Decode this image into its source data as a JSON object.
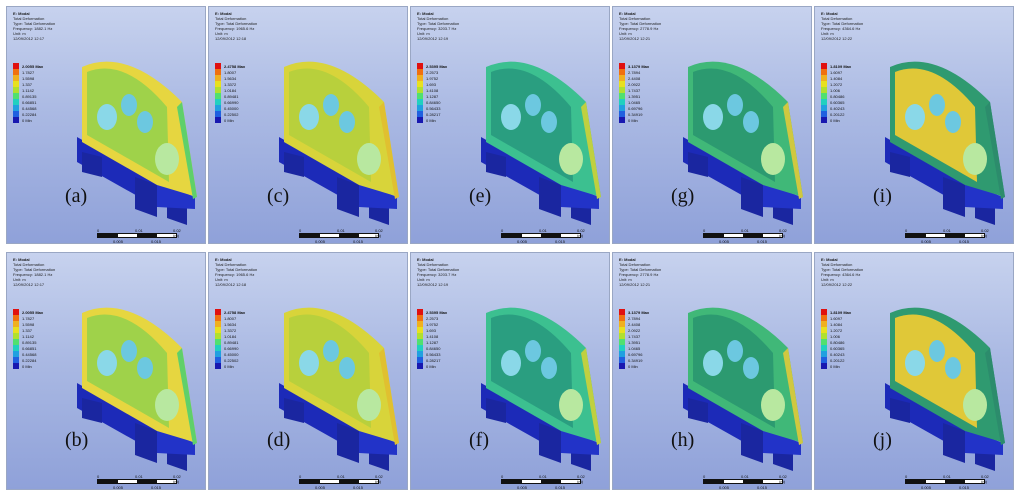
{
  "panels": [
    {
      "id": "a",
      "label": "(a)",
      "title": [
        "E: Modal",
        "Total Deformation",
        "Type: Total Deformation",
        "Frequency: 1882.1 Hz",
        "Unit: m",
        "12/09/2012 12:17"
      ],
      "legend": [
        "2.0055 Max",
        "1.7827",
        "1.5598",
        "1.337",
        "1.1142",
        "0.89135",
        "0.66851",
        "0.44568",
        "0.22284",
        "0 Min"
      ]
    },
    {
      "id": "c",
      "label": "(c)",
      "title": [
        "E: Modal",
        "Total Deformation",
        "Type: Total Deformation",
        "Frequency: 1965.6 Hz",
        "Unit: m",
        "12/09/2012 12:18"
      ],
      "legend": [
        "2.4758 Max",
        "1.8007",
        "1.5634",
        "1.3372",
        "1.0184",
        "0.89481",
        "0.66990",
        "0.45000",
        "0.22502",
        "0 Min"
      ]
    },
    {
      "id": "e",
      "label": "(e)",
      "title": [
        "E: Modal",
        "Total Deformation",
        "Type: Total Deformation",
        "Frequency: 3203.7 Hz",
        "Unit: m",
        "12/09/2012 12:19"
      ],
      "legend": [
        "2.5395 Max",
        "2.2573",
        "1.9752",
        "1.693",
        "1.4108",
        "1.1287",
        "0.84650",
        "0.56433",
        "0.28217",
        "0 Min"
      ]
    },
    {
      "id": "g",
      "label": "(g)",
      "title": [
        "E: Modal",
        "Total Deformation",
        "Type: Total Deformation",
        "Frequency: 2778.9 Hz",
        "Unit: m",
        "12/09/2012 12:21"
      ],
      "legend": [
        "3.1379 Max",
        "2.7894",
        "2.4408",
        "2.0922",
        "1.7437",
        "1.3951",
        "1.0465",
        "0.69796",
        "0.34919",
        "0 Min"
      ]
    },
    {
      "id": "i",
      "label": "(i)",
      "title": [
        "E: Modal",
        "Total Deformation",
        "Type: Total Deformation",
        "Frequency: 4364.6 Hz",
        "Unit: m",
        "12/09/2012 12:22"
      ],
      "legend": [
        "1.8109 Max",
        "1.6097",
        "1.4084",
        "1.2072",
        "1.006",
        "0.80486",
        "0.60365",
        "0.40243",
        "0.20122",
        "0 Min"
      ]
    },
    {
      "id": "b",
      "label": "(b)",
      "title": [
        "E: Modal",
        "Total Deformation",
        "Type: Total Deformation",
        "Frequency: 1882.1 Hz",
        "Unit: m",
        "12/09/2012 12:17"
      ],
      "legend": [
        "2.0055 Max",
        "1.7827",
        "1.5598",
        "1.337",
        "1.1142",
        "0.89135",
        "0.66851",
        "0.44568",
        "0.22284",
        "0 Min"
      ]
    },
    {
      "id": "d",
      "label": "(d)",
      "title": [
        "E: Modal",
        "Total Deformation",
        "Type: Total Deformation",
        "Frequency: 1965.6 Hz",
        "Unit: m",
        "12/09/2012 12:18"
      ],
      "legend": [
        "2.4758 Max",
        "1.8007",
        "1.5634",
        "1.3372",
        "1.0184",
        "0.89481",
        "0.66990",
        "0.45000",
        "0.22502",
        "0 Min"
      ]
    },
    {
      "id": "f",
      "label": "(f)",
      "title": [
        "E: Modal",
        "Total Deformation",
        "Type: Total Deformation",
        "Frequency: 3203.7 Hz",
        "Unit: m",
        "12/09/2012 12:19"
      ],
      "legend": [
        "2.5395 Max",
        "2.2573",
        "1.9752",
        "1.693",
        "1.4108",
        "1.1287",
        "0.84650",
        "0.56433",
        "0.28217",
        "0 Min"
      ]
    },
    {
      "id": "h",
      "label": "(h)",
      "title": [
        "E: Modal",
        "Total Deformation",
        "Type: Total Deformation",
        "Frequency: 2778.9 Hz",
        "Unit: m",
        "12/09/2012 12:21"
      ],
      "legend": [
        "3.1379 Max",
        "2.7894",
        "2.4408",
        "2.0922",
        "1.7437",
        "1.3951",
        "1.0465",
        "0.69796",
        "0.34919",
        "0 Min"
      ]
    },
    {
      "id": "j",
      "label": "(j)",
      "title": [
        "E: Modal",
        "Total Deformation",
        "Type: Total Deformation",
        "Frequency: 4364.6 Hz",
        "Unit: m",
        "12/09/2012 12:22"
      ],
      "legend": [
        "1.8109 Max",
        "1.6097",
        "1.4084",
        "1.2072",
        "1.006",
        "0.80486",
        "0.60365",
        "0.40243",
        "0.20122",
        "0 Min"
      ]
    }
  ],
  "legend_colors": [
    "#e01010",
    "#f07010",
    "#f0b020",
    "#e8e020",
    "#b0e030",
    "#50e070",
    "#20d0c0",
    "#20a0e0",
    "#2060e0",
    "#1818b0"
  ],
  "scalebar": {
    "top": [
      "0",
      "0.01",
      "0.02 (m)"
    ],
    "bottom": [
      "0.005",
      "0.015"
    ]
  }
}
